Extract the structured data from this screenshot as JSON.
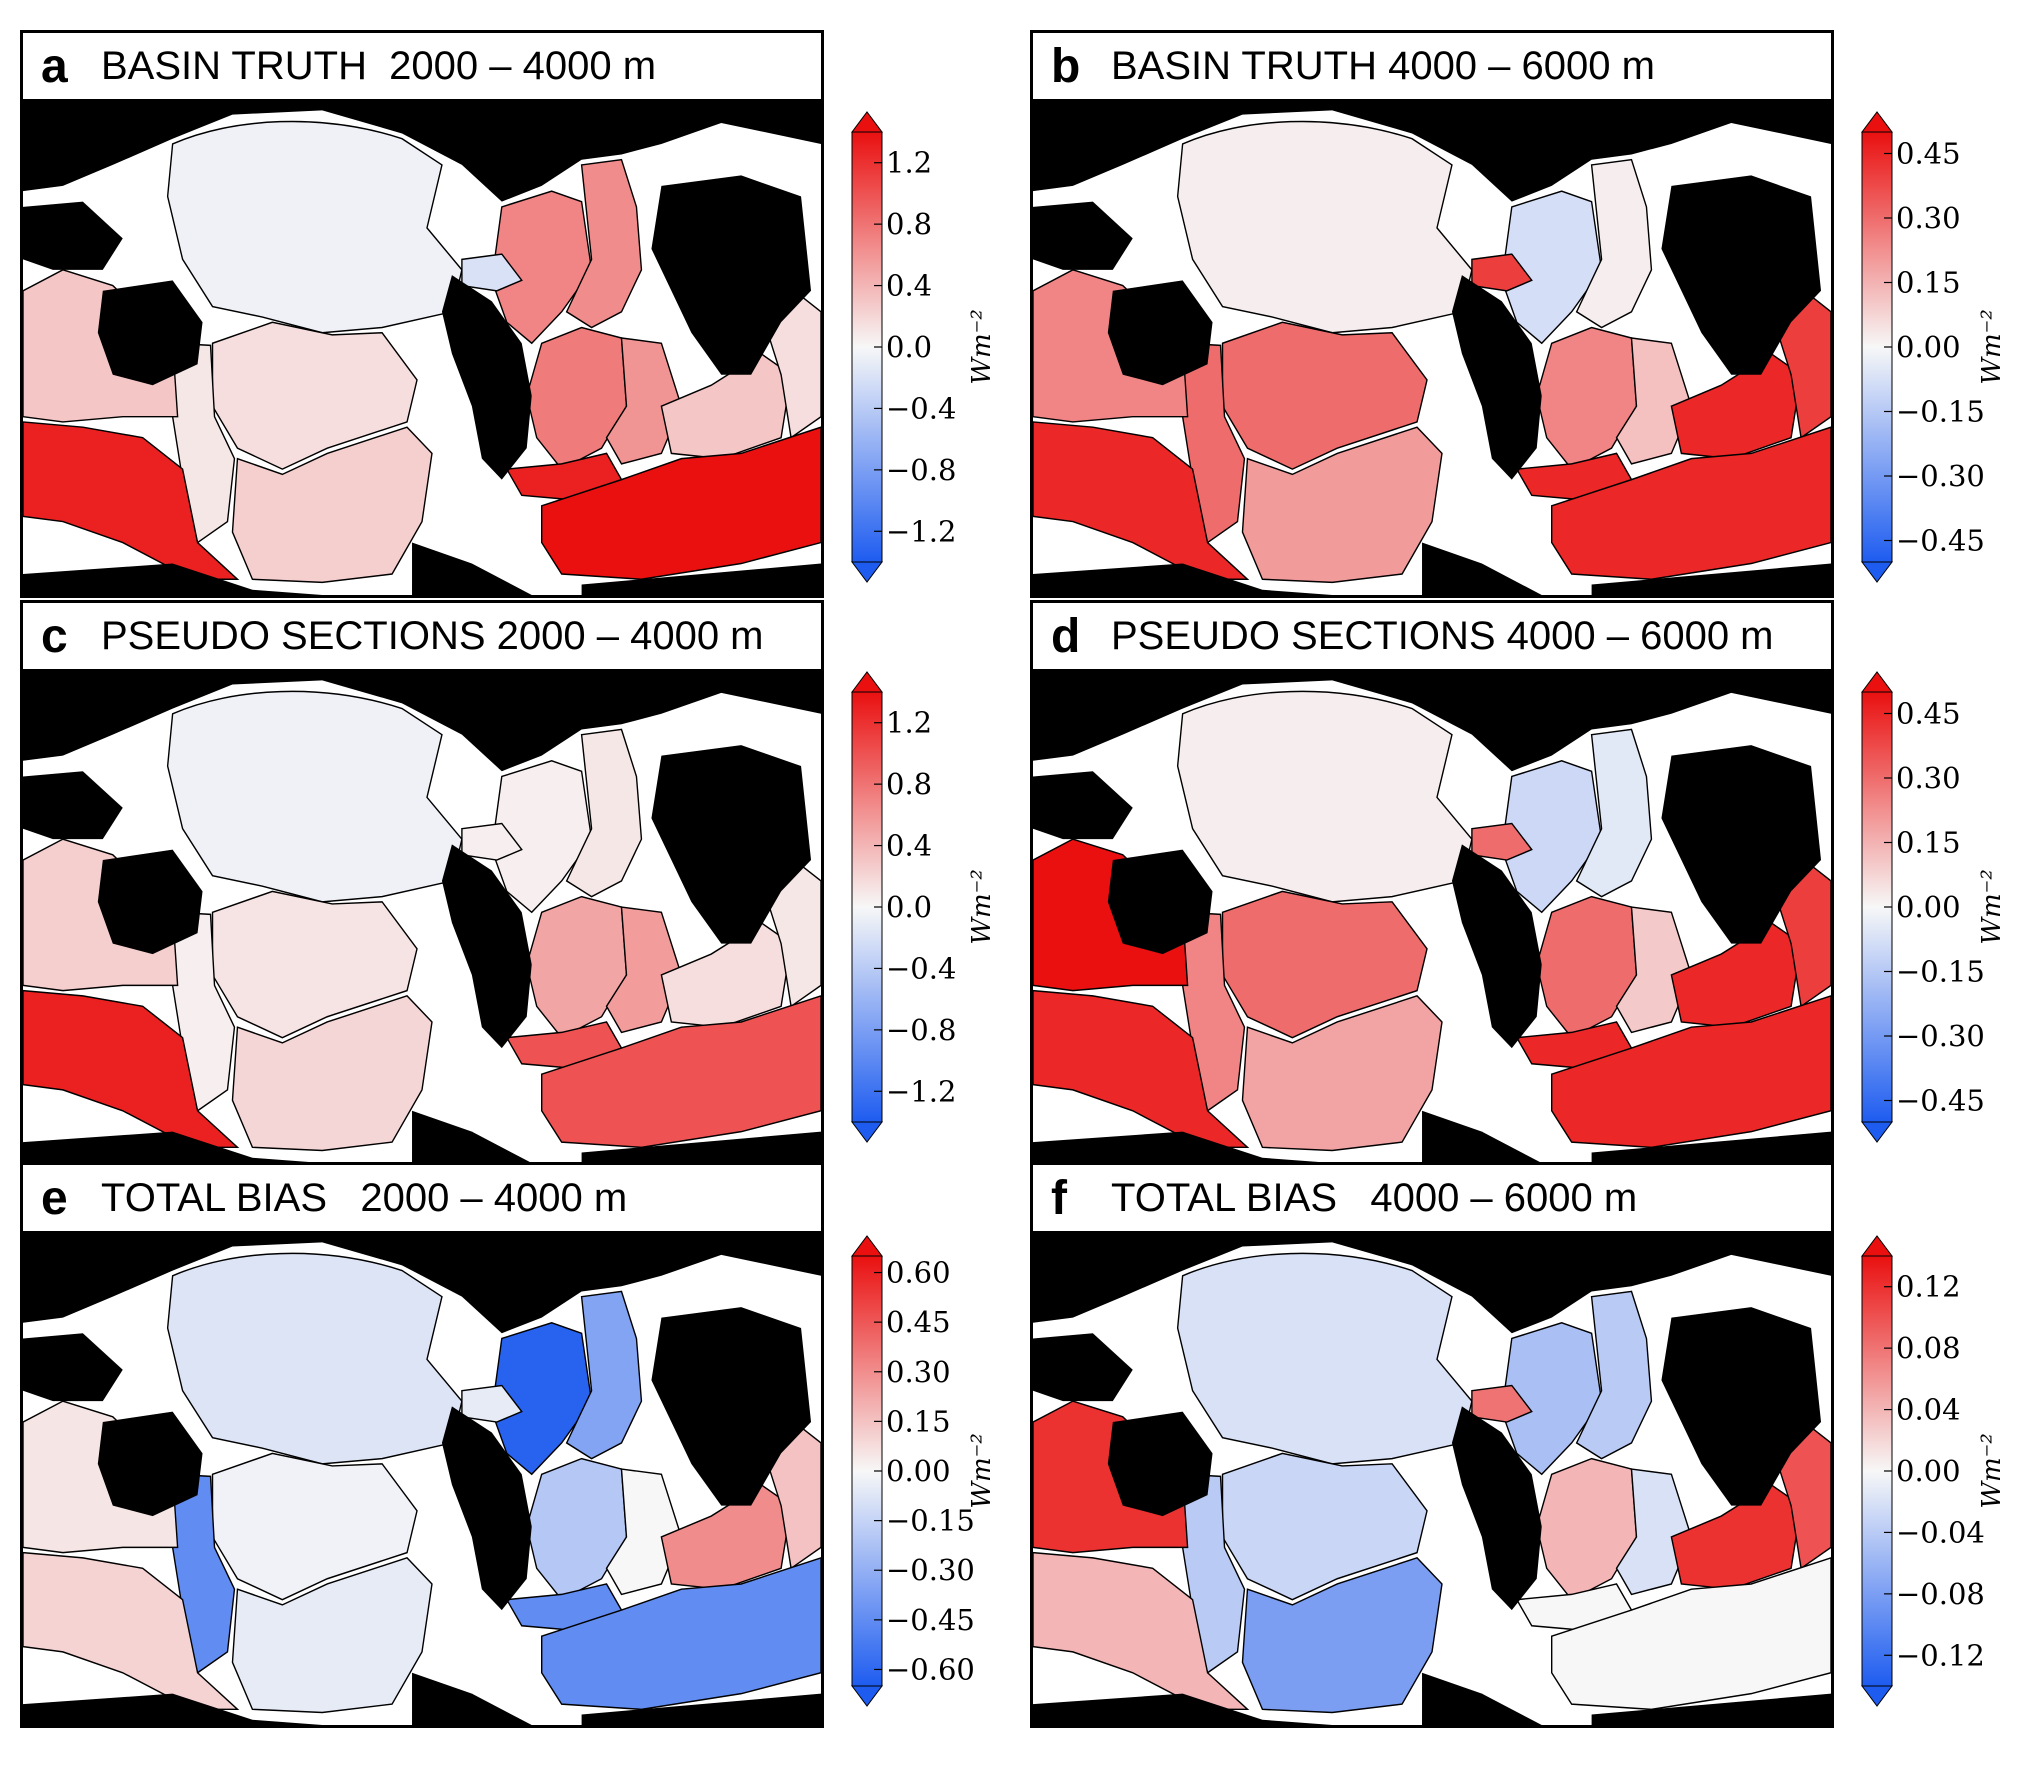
{
  "colors": {
    "land": "#000000",
    "border": "#000000",
    "cmap_low": "#1e5cf0",
    "cmap_mid": "#f7f7f7",
    "cmap_high": "#ea1010"
  },
  "panels": [
    {
      "letter": "a",
      "title": "BASIN TRUTH  2000 – 4000 m",
      "vmax": 1.4,
      "ticks": [
        "1.2",
        "0.8",
        "0.4",
        "0.0",
        "−0.4",
        "−0.8",
        "−1.2"
      ],
      "tick_values": [
        1.2,
        0.8,
        0.4,
        0.0,
        -0.4,
        -0.8,
        -1.2
      ],
      "unit": "Wm⁻²",
      "basins": {
        "n_atlantic": 0.7,
        "n_atlantic_e": 0.65,
        "s_atlantic_w": 0.75,
        "s_atlantic_e": 0.6,
        "weddell": 1.3,
        "indian_w": 0.3,
        "indian_e": 0.15,
        "s_indian": 1.4,
        "aus_w": 0.3,
        "aus_s": 1.3,
        "n_pacific": -0.05,
        "tasman": 0.1,
        "s_pacific": 0.15,
        "se_pacific": 0.25,
        "caribbean": -0.2
      }
    },
    {
      "letter": "b",
      "title": "BASIN TRUTH 4000 – 6000 m",
      "vmax": 0.5,
      "ticks": [
        "0.45",
        "0.30",
        "0.15",
        "0.00",
        "−0.15",
        "−0.30",
        "−0.45"
      ],
      "tick_values": [
        0.45,
        0.3,
        0.15,
        0.0,
        -0.15,
        -0.3,
        -0.45
      ],
      "unit": "Wm⁻²",
      "basins": {
        "n_atlantic": -0.08,
        "n_atlantic_e": 0.02,
        "s_atlantic_w": 0.25,
        "s_atlantic_e": 0.12,
        "weddell": 0.45,
        "indian_w": 0.45,
        "indian_e": 0.4,
        "s_indian": 0.45,
        "aus_w": 0.25,
        "aus_s": 0.45,
        "n_pacific": 0.02,
        "tasman": 0.3,
        "s_pacific": 0.3,
        "se_pacific": 0.2,
        "caribbean": 0.4
      }
    },
    {
      "letter": "c",
      "title": "PSEUDO SECTIONS 2000 – 4000 m",
      "vmax": 1.4,
      "ticks": [
        "1.2",
        "0.8",
        "0.4",
        "0.0",
        "−0.4",
        "−0.8",
        "−1.2"
      ],
      "tick_values": [
        1.2,
        0.8,
        0.4,
        0.0,
        -0.4,
        -0.8,
        -1.2
      ],
      "unit": "Wm⁻²",
      "basins": {
        "n_atlantic": 0.05,
        "n_atlantic_e": 0.1,
        "s_atlantic_w": 0.5,
        "s_atlantic_e": 0.55,
        "weddell": 1.0,
        "indian_w": 0.15,
        "indian_e": 0.1,
        "s_indian": 1.0,
        "aus_w": 0.25,
        "aus_s": 1.3,
        "n_pacific": -0.05,
        "tasman": 0.05,
        "s_pacific": 0.12,
        "se_pacific": 0.2,
        "caribbean": 0.05
      }
    },
    {
      "letter": "d",
      "title": "PSEUDO SECTIONS 4000 – 6000 m",
      "vmax": 0.5,
      "ticks": [
        "0.45",
        "0.30",
        "0.15",
        "0.00",
        "−0.15",
        "−0.30",
        "−0.45"
      ],
      "tick_values": [
        0.45,
        0.3,
        0.15,
        0.0,
        -0.15,
        -0.3,
        -0.45
      ],
      "unit": "Wm⁻²",
      "basins": {
        "n_atlantic": -0.1,
        "n_atlantic_e": -0.05,
        "s_atlantic_w": 0.3,
        "s_atlantic_e": 0.1,
        "weddell": 0.45,
        "indian_w": 0.45,
        "indian_e": 0.4,
        "s_indian": 0.45,
        "aus_w": 0.5,
        "aus_s": 0.45,
        "n_pacific": 0.02,
        "tasman": 0.25,
        "s_pacific": 0.3,
        "se_pacific": 0.18,
        "caribbean": 0.3
      }
    },
    {
      "letter": "e",
      "title": "TOTAL BIAS   2000 – 4000 m",
      "vmax": 0.65,
      "ticks": [
        "0.60",
        "0.45",
        "0.30",
        "0.15",
        "0.00",
        "−0.15",
        "−0.30",
        "−0.45",
        "−0.60"
      ],
      "tick_values": [
        0.6,
        0.45,
        0.3,
        0.15,
        0.0,
        -0.15,
        -0.3,
        -0.45,
        -0.6
      ],
      "unit": "Wm⁻²",
      "basins": {
        "n_atlantic": -0.62,
        "n_atlantic_e": -0.35,
        "s_atlantic_w": -0.2,
        "s_atlantic_e": 0.0,
        "weddell": -0.45,
        "indian_w": 0.3,
        "indian_e": 0.15,
        "s_indian": -0.45,
        "aus_w": 0.05,
        "aus_s": 0.1,
        "n_pacific": -0.08,
        "tasman": -0.45,
        "s_pacific": -0.02,
        "se_pacific": -0.05,
        "caribbean": -0.05
      }
    },
    {
      "letter": "f",
      "title": "TOTAL BIAS   4000 – 6000 m",
      "vmax": 0.14,
      "ticks": [
        "0.12",
        "0.08",
        "0.04",
        "0.00",
        "−0.04",
        "−0.08",
        "−0.12"
      ],
      "tick_values": [
        0.12,
        0.08,
        0.04,
        0.0,
        -0.04,
        -0.08,
        -0.12
      ],
      "unit": "Wm⁻²",
      "basins": {
        "n_atlantic": -0.05,
        "n_atlantic_e": -0.04,
        "s_atlantic_w": 0.04,
        "s_atlantic_e": -0.02,
        "weddell": 0.0,
        "indian_w": 0.12,
        "indian_e": 0.1,
        "s_indian": 0.0,
        "aus_w": 0.12,
        "aus_s": 0.04,
        "n_pacific": -0.02,
        "tasman": -0.04,
        "s_pacific": -0.03,
        "se_pacific": -0.08,
        "caribbean": 0.08
      }
    }
  ]
}
